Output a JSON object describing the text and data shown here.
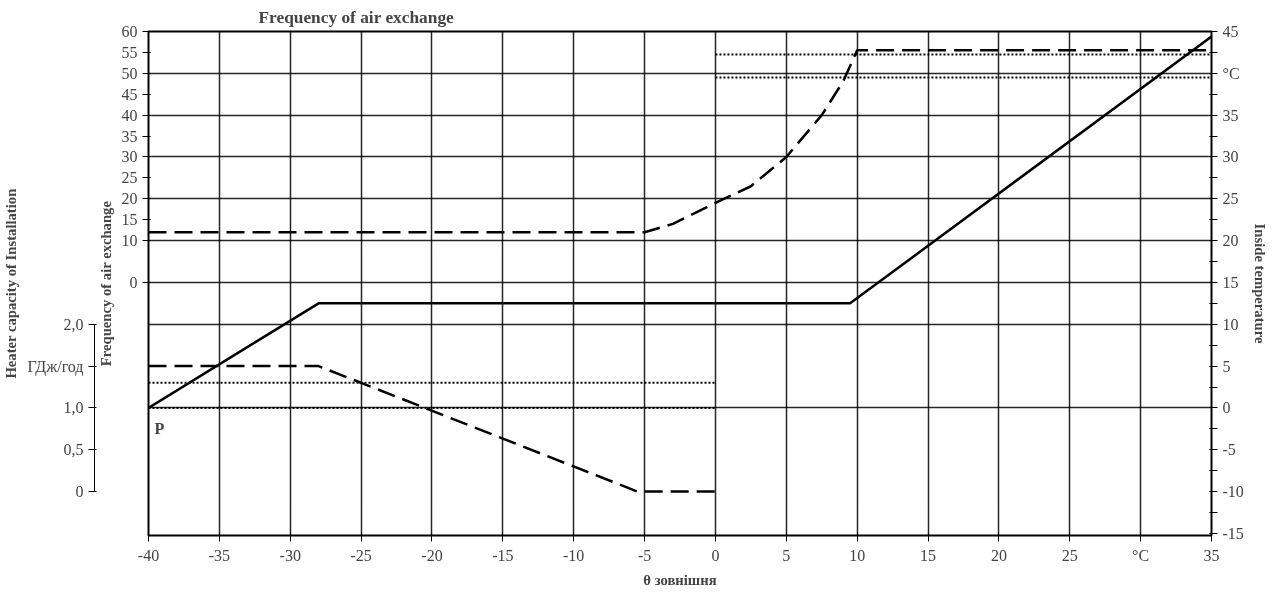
{
  "chart_data": {
    "type": "line",
    "title": "Frequency of air exchange",
    "xlabel": "θ зовнішня",
    "ylabel": "Frequency of air exchange",
    "y2label": "Inside temperature",
    "y3label": "Heater capacity of Installation",
    "annotations": [
      "P"
    ],
    "xlim": [
      -40,
      35
    ],
    "xticks": [
      -40,
      -35,
      -30,
      -25,
      -20,
      -15,
      -10,
      -5,
      0,
      5,
      10,
      15,
      20,
      25,
      {
        "value": 30,
        "label": "°C"
      },
      35
    ],
    "ylim": [
      -60.5,
      60
    ],
    "yticks": [
      0,
      10,
      15,
      20,
      25,
      30,
      35,
      40,
      45,
      50,
      55,
      60
    ],
    "y2lim": [
      -15.25,
      45
    ],
    "y2ticks": [
      -15,
      {
        "value": -12.5,
        "label": null
      },
      -10,
      {
        "value": -7.5,
        "label": null
      },
      -5,
      {
        "value": -2.5,
        "label": null
      },
      0,
      {
        "value": 2.5,
        "label": null
      },
      5,
      {
        "value": 7.5,
        "label": null
      },
      10,
      {
        "value": 12.5,
        "label": null
      },
      15,
      {
        "value": 17.5,
        "label": null
      },
      20,
      {
        "value": 22.5,
        "label": null
      },
      25,
      {
        "value": 27.5,
        "label": null
      },
      30,
      {
        "value": 32.5,
        "label": null
      },
      35,
      {
        "value": 37.5,
        "label": null
      },
      {
        "value": 40,
        "label": "°C"
      },
      {
        "value": 42.5,
        "label": null
      },
      45
    ],
    "y3lim": [
      -0.525,
      5.5
    ],
    "y3ticks": [
      0,
      {
        "value": 0.5,
        "label": "0,5"
      },
      {
        "value": 1.0,
        "label": "1,0"
      },
      {
        "value": 1.5,
        "label": "ГДж/год"
      },
      {
        "value": 2.0,
        "label": "2,0"
      }
    ],
    "grid": true,
    "series": [
      {
        "axis": "y",
        "color": "#000000",
        "line_style": "dashed",
        "x": [
          -40,
          -5,
          -3,
          0,
          2.5,
          5,
          7.5,
          9,
          10,
          35
        ],
        "values": [
          12,
          12,
          14,
          19,
          23,
          30,
          40,
          48,
          55.5,
          55.5
        ]
      },
      {
        "axis": "y2",
        "color": "#000000",
        "line_style": "solid",
        "x": [
          -40,
          -28,
          9.5,
          35
        ],
        "values": [
          0,
          12.5,
          12.5,
          44.4
        ]
      },
      {
        "axis": "y3",
        "color": "#000000",
        "line_style": "dashed",
        "x": [
          -40,
          -28,
          -5.5,
          0
        ],
        "values": [
          1.5,
          1.5,
          0,
          0
        ]
      },
      {
        "axis": "y",
        "color": "#000000",
        "line_style": "dotted",
        "x": [
          0,
          35
        ],
        "values": [
          54.5,
          54.5
        ]
      },
      {
        "axis": "y",
        "color": "#000000",
        "line_style": "dotted",
        "x": [
          0,
          35
        ],
        "values": [
          49,
          49
        ]
      },
      {
        "axis": "y3",
        "color": "#000000",
        "line_style": "dotted",
        "x": [
          -40,
          0
        ],
        "values": [
          1.3,
          1.3
        ]
      },
      {
        "axis": "y3",
        "color": "#000000",
        "line_style": "dotted",
        "x": [
          -40,
          0
        ],
        "values": [
          1.0,
          1.0
        ]
      }
    ]
  }
}
